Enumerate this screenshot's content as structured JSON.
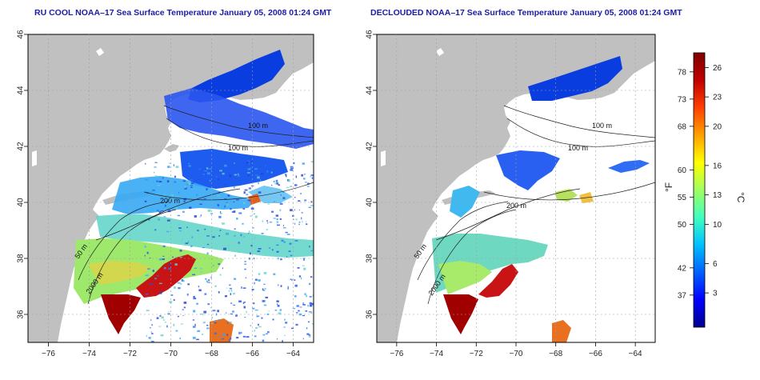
{
  "panels": [
    {
      "id": "left",
      "title": "RU COOL NOAA–17 Sea Surface Temperature January 05, 2008 01:24 GMT",
      "mode": "cloudy"
    },
    {
      "id": "right",
      "title": "DECLOUDED NOAA–17 Sea Surface Temperature January 05, 2008 01:24 GMT",
      "mode": "declouded"
    }
  ],
  "axes": {
    "lon_ticks": [
      "−76",
      "−74",
      "−72",
      "−70",
      "−68",
      "−66",
      "−64"
    ],
    "lat_ticks": [
      "36",
      "38",
      "40",
      "42",
      "44",
      "46"
    ]
  },
  "contour_labels": {
    "left": [
      "100 m",
      "100 m",
      "200 m",
      "50 m",
      "2000 m"
    ],
    "right": [
      "100 m",
      "100 m",
      "200 m",
      "50 m",
      "2000 m"
    ]
  },
  "colorbar": {
    "fahrenheit_ticks": [
      "78",
      "73",
      "68",
      "60",
      "55",
      "50",
      "42",
      "37"
    ],
    "celsius_ticks": [
      "26",
      "23",
      "20",
      "16",
      "13",
      "10",
      "6",
      "3"
    ],
    "unit_f": "°F",
    "unit_c": "°C",
    "colors": [
      "#00008f",
      "#0000ff",
      "#0060ff",
      "#00c0ff",
      "#40ffc0",
      "#a0ff60",
      "#ffff00",
      "#ffa000",
      "#ff4000",
      "#c00000",
      "#800000"
    ]
  },
  "colors": {
    "land": "#c0c0c0",
    "ocean_nodata": "#ffffff",
    "grid": "#a0a0a0",
    "title": "#1c1caa"
  }
}
